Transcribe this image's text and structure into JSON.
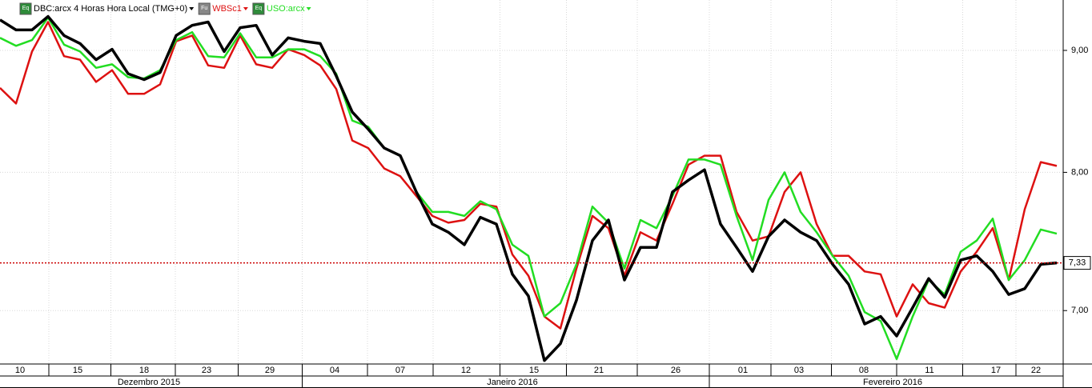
{
  "chart_data": {
    "type": "line",
    "subtitle": "4 Horas Hora Local (TMG+0)",
    "log_scale": true,
    "grid": true,
    "ylim": [
      6.648,
      9.449
    ],
    "yticks": [
      {
        "value": 9,
        "label": "9,00"
      },
      {
        "value": 8,
        "label": "8,00"
      },
      {
        "value": 7,
        "label": "7,00"
      }
    ],
    "last_price": {
      "value": 7.33,
      "label": "7,33",
      "color": "#cc0000"
    },
    "xlim": [
      0,
      66.4
    ],
    "xticks": [
      {
        "value": 1.25,
        "label": "10"
      },
      {
        "value": 4.85,
        "label": "15"
      },
      {
        "value": 9.0,
        "label": "18"
      },
      {
        "value": 12.9,
        "label": "23"
      },
      {
        "value": 16.85,
        "label": "29"
      },
      {
        "value": 20.9,
        "label": "04"
      },
      {
        "value": 25.0,
        "label": "07"
      },
      {
        "value": 29.1,
        "label": "12"
      },
      {
        "value": 33.35,
        "label": "15"
      },
      {
        "value": 37.4,
        "label": "21"
      },
      {
        "value": 42.2,
        "label": "26"
      },
      {
        "value": 46.4,
        "label": "01"
      },
      {
        "value": 49.9,
        "label": "03"
      },
      {
        "value": 53.95,
        "label": "08"
      },
      {
        "value": 58.05,
        "label": "11"
      },
      {
        "value": 62.2,
        "label": "17"
      },
      {
        "value": 64.7,
        "label": "22"
      }
    ],
    "months": [
      {
        "value": 9.3,
        "label": "Dezembro 2015"
      },
      {
        "value": 32.0,
        "label": "Janeiro 2016"
      },
      {
        "value": 55.75,
        "label": "Fevereiro 2016"
      }
    ],
    "series": [
      {
        "name": "DBC:arcx",
        "badge": "Eq",
        "color": "#000000",
        "values": [
          9.27,
          9.18,
          9.18,
          9.3,
          9.13,
          9.06,
          8.92,
          9.01,
          8.8,
          8.75,
          8.81,
          9.13,
          9.22,
          9.25,
          8.99,
          9.2,
          9.22,
          8.96,
          9.11,
          9.08,
          9.06,
          8.78,
          8.48,
          8.34,
          8.19,
          8.13,
          7.85,
          7.61,
          7.55,
          7.46,
          7.66,
          7.61,
          7.25,
          7.1,
          6.67,
          6.78,
          7.07,
          7.49,
          7.64,
          7.21,
          7.44,
          7.44,
          7.85,
          7.94,
          8.02,
          7.61,
          7.44,
          7.27,
          7.52,
          7.64,
          7.55,
          7.49,
          7.32,
          7.18,
          6.91,
          6.96,
          6.83,
          7.02,
          7.22,
          7.09,
          7.35,
          7.38,
          7.27,
          7.11,
          7.15,
          7.32,
          7.33
        ]
      },
      {
        "name": "WBSc1",
        "badge": "Fu",
        "color": "#dd1111",
        "values": [
          8.68,
          8.55,
          8.99,
          9.25,
          8.95,
          8.92,
          8.73,
          8.83,
          8.63,
          8.63,
          8.71,
          9.08,
          9.13,
          8.87,
          8.85,
          9.13,
          8.88,
          8.85,
          9.01,
          8.96,
          8.87,
          8.67,
          8.25,
          8.19,
          8.03,
          7.97,
          7.82,
          7.67,
          7.62,
          7.64,
          7.76,
          7.74,
          7.39,
          7.24,
          6.96,
          6.88,
          7.29,
          7.67,
          7.58,
          7.24,
          7.55,
          7.49,
          7.76,
          8.06,
          8.13,
          8.13,
          7.7,
          7.49,
          7.52,
          7.85,
          8.0,
          7.61,
          7.38,
          7.38,
          7.27,
          7.25,
          6.96,
          7.18,
          7.05,
          7.02,
          7.27,
          7.41,
          7.58,
          7.21,
          7.72,
          8.08,
          8.05
        ]
      },
      {
        "name": "USO:arcx",
        "badge": "Eq",
        "color": "#22dd22",
        "values": [
          9.11,
          9.04,
          9.09,
          9.29,
          9.05,
          8.99,
          8.85,
          8.88,
          8.77,
          8.76,
          8.83,
          9.09,
          9.16,
          8.95,
          8.94,
          9.15,
          8.94,
          8.94,
          9.01,
          9.01,
          8.95,
          8.8,
          8.41,
          8.36,
          8.19,
          8.13,
          7.85,
          7.7,
          7.7,
          7.67,
          7.78,
          7.72,
          7.46,
          7.38,
          6.96,
          7.05,
          7.32,
          7.74,
          7.62,
          7.29,
          7.64,
          7.58,
          7.82,
          8.1,
          8.1,
          8.06,
          7.67,
          7.35,
          7.79,
          8.0,
          7.7,
          7.55,
          7.38,
          7.24,
          6.99,
          6.93,
          6.68,
          6.96,
          7.21,
          7.11,
          7.41,
          7.49,
          7.65,
          7.21,
          7.35,
          7.57,
          7.54
        ]
      }
    ]
  }
}
